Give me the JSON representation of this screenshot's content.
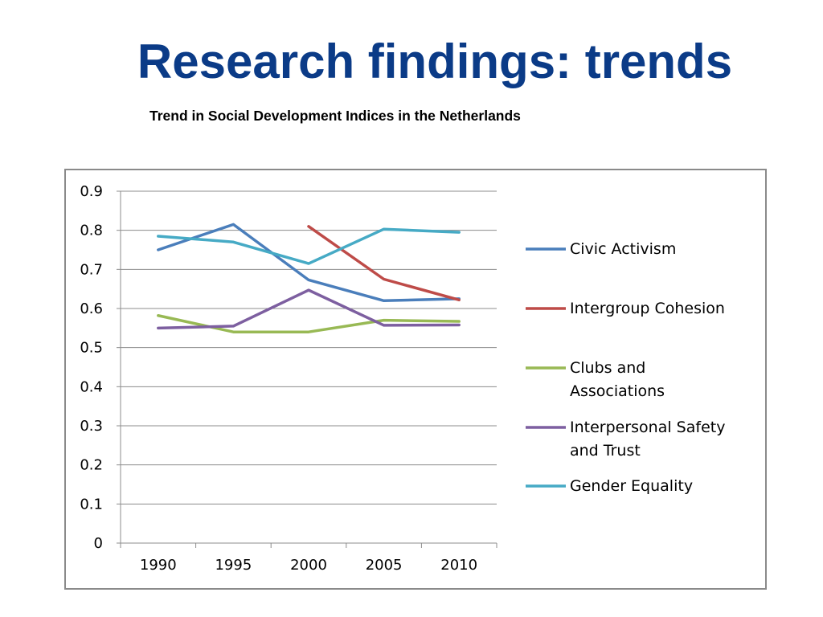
{
  "slide": {
    "title": "Research findings: trends",
    "subtitle": "Trend in Social Development Indices in the Netherlands"
  },
  "chart_data": {
    "type": "line",
    "title": "",
    "xlabel": "",
    "ylabel": "",
    "categories": [
      "1990",
      "1995",
      "2000",
      "2005",
      "2010"
    ],
    "ylim": [
      0,
      0.9
    ],
    "yticks": [
      "0",
      "0.1",
      "0.2",
      "0.3",
      "0.4",
      "0.5",
      "0.6",
      "0.7",
      "0.8",
      "0.9"
    ],
    "grid": true,
    "legend_position": "right",
    "series": [
      {
        "name": "Civic Activism",
        "color": "#4a7ebb",
        "values": [
          0.75,
          0.815,
          0.673,
          0.62,
          0.625
        ]
      },
      {
        "name": "Intergroup Cohesion",
        "color": "#be4b48",
        "values": [
          null,
          null,
          0.81,
          0.675,
          0.622
        ]
      },
      {
        "name": "Clubs and Associations",
        "color": "#98b954",
        "values": [
          0.582,
          0.54,
          0.54,
          0.57,
          0.567
        ]
      },
      {
        "name": "Interpersonal Safety and Trust",
        "color": "#7d5fa0",
        "values": [
          0.55,
          0.555,
          0.647,
          0.557,
          0.558
        ]
      },
      {
        "name": "Gender Equality",
        "color": "#46aac5",
        "values": [
          0.785,
          0.77,
          0.715,
          0.803,
          0.795
        ]
      }
    ]
  }
}
